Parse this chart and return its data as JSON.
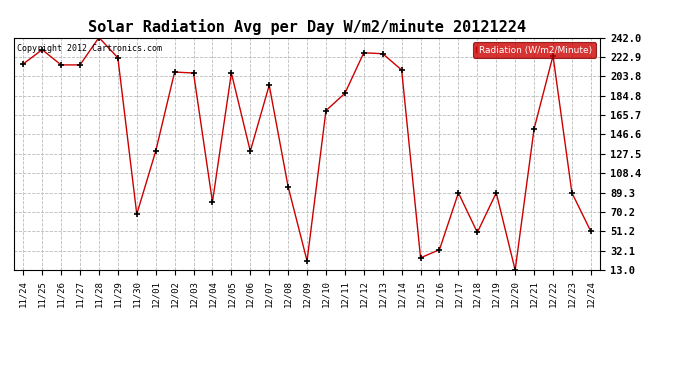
{
  "title": "Solar Radiation Avg per Day W/m2/minute 20121224",
  "copyright": "Copyright 2012 Cartronics.com",
  "legend_label": "Radiation (W/m2/Minute)",
  "dates": [
    "11/24",
    "11/25",
    "11/26",
    "11/27",
    "11/28",
    "11/29",
    "11/30",
    "12/01",
    "12/02",
    "12/03",
    "12/04",
    "12/05",
    "12/06",
    "12/07",
    "12/08",
    "12/09",
    "12/10",
    "12/11",
    "12/12",
    "12/13",
    "12/14",
    "12/15",
    "12/16",
    "12/17",
    "12/18",
    "12/19",
    "12/20",
    "12/21",
    "12/22",
    "12/23",
    "12/24"
  ],
  "values": [
    216,
    230,
    215,
    215,
    242,
    222,
    68,
    130,
    208,
    207,
    80,
    207,
    130,
    195,
    95,
    22,
    170,
    187,
    227,
    226,
    210,
    25,
    33,
    89,
    50,
    89,
    13,
    152,
    224,
    89,
    51
  ],
  "ylim": [
    13.0,
    242.0
  ],
  "yticks": [
    13.0,
    32.1,
    51.2,
    70.2,
    89.3,
    108.4,
    127.5,
    146.6,
    165.7,
    184.8,
    203.8,
    222.9,
    242.0
  ],
  "line_color": "#cc0000",
  "marker_color": "#000000",
  "bg_color": "#ffffff",
  "grid_color": "#bbbbbb",
  "title_fontsize": 11,
  "legend_bg": "#cc0000",
  "legend_text_color": "#ffffff"
}
